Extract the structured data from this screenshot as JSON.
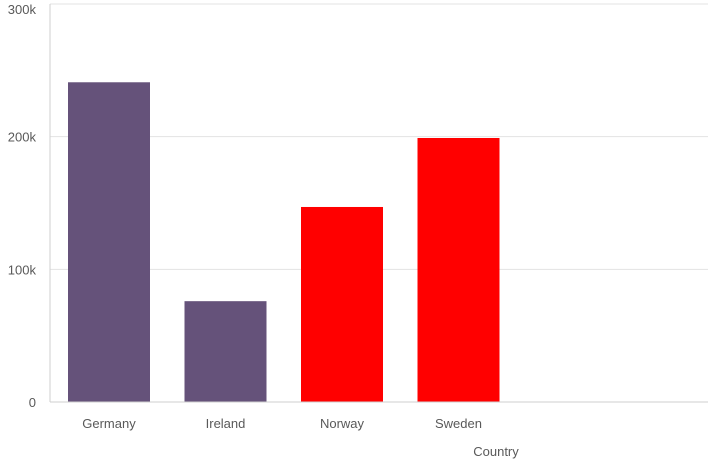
{
  "chart_data": {
    "type": "bar",
    "title": "",
    "xlabel": "Country",
    "ylabel": "",
    "categories": [
      "Germany",
      "Ireland",
      "Norway",
      "Sweden"
    ],
    "values": [
      241000,
      76000,
      147000,
      199000
    ],
    "bar_colors": [
      "#65527a",
      "#65527a",
      "#ff0000",
      "#ff0000"
    ],
    "ylim": [
      0,
      300000
    ],
    "yticks": [
      0,
      100000,
      200000,
      300000
    ],
    "ytick_labels": [
      "0",
      "100k",
      "200k",
      "300k"
    ],
    "grid": true,
    "legend": "none"
  }
}
